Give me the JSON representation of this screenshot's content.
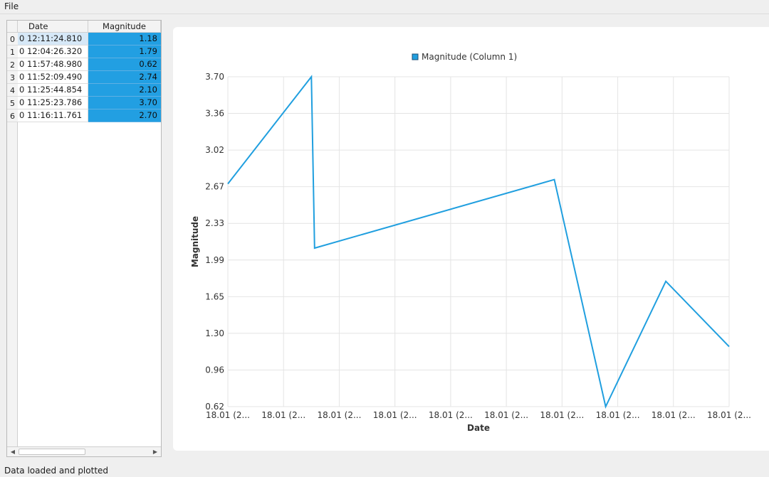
{
  "menubar": {
    "file": "File"
  },
  "table": {
    "columns": [
      "Date",
      "Magnitude"
    ],
    "rows": [
      {
        "index": "0",
        "date": "0 12:11:24.810",
        "magnitude": "1.18"
      },
      {
        "index": "1",
        "date": "0 12:04:26.320",
        "magnitude": "1.79"
      },
      {
        "index": "2",
        "date": "0 11:57:48.980",
        "magnitude": "0.62"
      },
      {
        "index": "3",
        "date": "0 11:52:09.490",
        "magnitude": "2.74"
      },
      {
        "index": "4",
        "date": "0 11:25:44.854",
        "magnitude": "2.10"
      },
      {
        "index": "5",
        "date": "0 11:25:23.786",
        "magnitude": "3.70"
      },
      {
        "index": "6",
        "date": "0 11:16:11.761",
        "magnitude": "2.70"
      }
    ]
  },
  "chart_data": {
    "type": "line",
    "legend": "Magnitude (Column 1)",
    "legend_position": "top-center",
    "xlabel": "Date",
    "ylabel": "Magnitude",
    "x_tick_labels": [
      "18.01 (2...",
      "18.01 (2...",
      "18.01 (2...",
      "18.01 (2...",
      "18.01 (2...",
      "18.01 (2...",
      "18.01 (2...",
      "18.01 (2...",
      "18.01 (2...",
      "18.01 (2..."
    ],
    "y_tick_labels": [
      "0.62",
      "0.96",
      "1.30",
      "1.65",
      "1.99",
      "2.33",
      "2.67",
      "3.02",
      "3.36",
      "3.70"
    ],
    "ylim": [
      0.62,
      3.7
    ],
    "grid": true,
    "series": [
      {
        "name": "Magnitude (Column 1)",
        "color": "#209fdf",
        "x": [
          "0 11:16:11.761",
          "0 11:25:23.786",
          "0 11:25:44.854",
          "0 11:52:09.490",
          "0 11:57:48.980",
          "0 12:04:26.320",
          "0 12:11:24.810"
        ],
        "values": [
          2.7,
          3.7,
          2.1,
          2.74,
          0.62,
          1.79,
          1.18
        ]
      }
    ]
  },
  "status": "Data loaded and plotted"
}
